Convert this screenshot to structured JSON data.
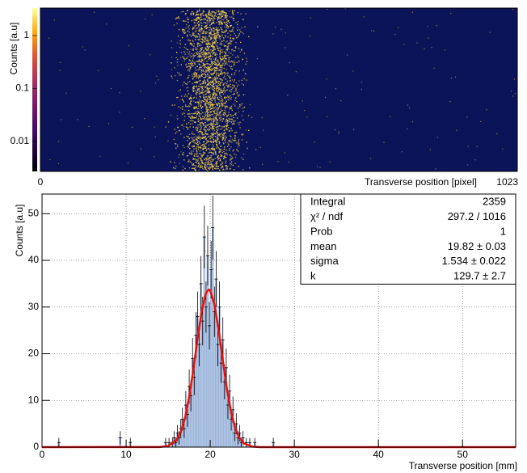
{
  "chart_data": [
    {
      "type": "heatmap",
      "xlabel": "Transverse position [pixel]",
      "xlim": [
        0,
        1023
      ],
      "xticks": [
        0,
        1023
      ],
      "colorbar": {
        "label": "Counts [a.u]",
        "log": true,
        "lim": [
          0.0027,
          3.3
        ],
        "ticks": [
          0.01,
          0.1,
          1
        ]
      },
      "background": "#0b1458",
      "band_color": "#f2d04a"
    },
    {
      "type": "histogram",
      "xlabel": "Transverse position [mm]",
      "ylabel": "Counts [a.u]",
      "xlim": [
        0,
        56.32
      ],
      "ylim": [
        0,
        54.2
      ],
      "xticks": [
        0,
        10,
        20,
        30,
        40,
        50
      ],
      "yticks": [
        0,
        10,
        20,
        30,
        40,
        50
      ],
      "grid": true,
      "color": "#b4c8e6",
      "bins": [
        0,
        1.9,
        2.1,
        9.2,
        9.4,
        10.4,
        10.6,
        14.4,
        14.6,
        14.8,
        15.0,
        15.2,
        15.4,
        15.6,
        15.8,
        16.0,
        16.2,
        16.4,
        16.6,
        16.8,
        17.0,
        17.2,
        17.4,
        17.6,
        17.8,
        18.0,
        18.2,
        18.4,
        18.6,
        18.8,
        19.0,
        19.2,
        19.4,
        19.6,
        19.8,
        20.0,
        20.2,
        20.4,
        20.6,
        20.8,
        21.0,
        21.2,
        21.4,
        21.6,
        21.8,
        22.0,
        22.2,
        22.4,
        22.6,
        22.8,
        23.0,
        23.2,
        23.4,
        23.6,
        23.8,
        24.0,
        24.2,
        24.4,
        24.6,
        24.8,
        25.0,
        25.2,
        25.4,
        27.4,
        27.6,
        56.32
      ],
      "values": [
        0,
        1,
        0,
        2,
        0,
        1,
        0,
        0,
        1,
        0,
        1,
        0,
        1,
        2,
        1,
        3,
        2,
        4,
        6,
        4,
        9,
        7,
        13,
        11,
        19,
        15,
        24,
        28,
        22,
        35,
        27,
        45,
        30,
        41,
        26,
        38,
        47,
        29,
        36,
        22,
        30,
        18,
        23,
        14,
        17,
        9,
        12,
        6,
        8,
        3,
        5,
        2,
        3,
        1,
        2,
        0,
        1,
        0,
        1,
        0,
        0,
        1,
        0,
        1,
        0
      ],
      "errors": [
        0,
        1,
        0,
        1.41,
        0,
        1,
        0,
        0,
        1,
        0,
        1,
        0,
        1,
        1.41,
        1,
        1.73,
        1.41,
        2,
        2.45,
        2,
        3,
        2.65,
        3.61,
        3.32,
        4.36,
        3.87,
        4.9,
        5.29,
        4.69,
        5.92,
        5.2,
        6.71,
        5.48,
        6.4,
        5.1,
        6.16,
        6.86,
        5.39,
        6,
        4.69,
        5.48,
        4.24,
        4.8,
        3.74,
        4.12,
        3,
        3.46,
        2.45,
        2.83,
        1.73,
        2.24,
        1.41,
        1.73,
        1,
        1.41,
        0,
        1,
        0,
        1,
        0,
        0,
        1,
        0,
        1,
        0
      ],
      "fit": {
        "color": "#e8100f",
        "x": [
          0,
          14,
          15,
          16,
          16.5,
          17,
          17.5,
          18,
          18.5,
          19,
          19.5,
          19.82,
          20,
          20.5,
          21,
          21.5,
          22,
          22.5,
          23,
          23.5,
          24,
          25,
          26,
          56.32
        ],
        "values": [
          0,
          0.03,
          0.24,
          1.52,
          3.24,
          6.22,
          10.75,
          16.69,
          23.29,
          29.24,
          33.01,
          33.73,
          33.5,
          30.57,
          25.09,
          18.52,
          12.29,
          7.33,
          3.93,
          1.9,
          0.82,
          0.11,
          0,
          0
        ]
      },
      "stats": [
        {
          "name": "Integral",
          "value": "2359"
        },
        {
          "name": "χ² / ndf",
          "value": "297.2 / 1016"
        },
        {
          "name": "Prob",
          "value": "1"
        },
        {
          "name": "mean",
          "value": "19.82 ± 0.03"
        },
        {
          "name": "sigma",
          "value": "1.534 ± 0.022"
        },
        {
          "name": "k",
          "value": "129.7 ± 2.7"
        }
      ]
    }
  ]
}
